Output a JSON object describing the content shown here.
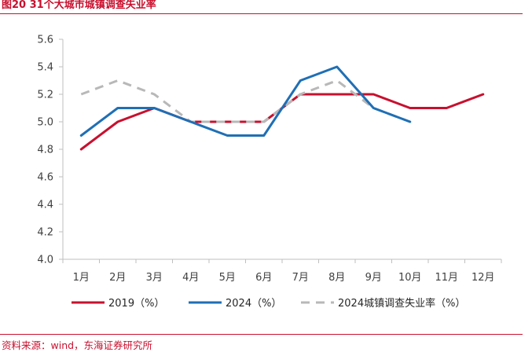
{
  "title": "图20  31个大城市城镇调查失业率",
  "source": "资料来源：wind，东海证券研究所",
  "colors": {
    "accent": "#c8102e",
    "s2019": "#c8102e",
    "s2024": "#1f6fb5",
    "survey": "#b8b8b8"
  },
  "chart_data": {
    "type": "line",
    "categories": [
      "1月",
      "2月",
      "3月",
      "4月",
      "5月",
      "6月",
      "7月",
      "8月",
      "9月",
      "10月",
      "11月",
      "12月"
    ],
    "ylim": [
      4.0,
      5.6
    ],
    "yticks": [
      "4.0",
      "4.2",
      "4.4",
      "4.6",
      "4.8",
      "5.0",
      "5.2",
      "5.4",
      "5.6"
    ],
    "grid": false,
    "legend_position": "bottom",
    "series": [
      {
        "name": "2019（%）",
        "color": "#c8102e",
        "style": "solid",
        "values": [
          4.8,
          5.0,
          5.1,
          5.0,
          5.0,
          5.0,
          5.2,
          5.2,
          5.2,
          5.1,
          5.1,
          5.2
        ]
      },
      {
        "name": "2024（%）",
        "color": "#1f6fb5",
        "style": "solid",
        "values": [
          4.9,
          5.1,
          5.1,
          5.0,
          4.9,
          4.9,
          5.3,
          5.4,
          5.1,
          5.0,
          null,
          null
        ]
      },
      {
        "name": "2024城镇调查失业率（%）",
        "color": "#b8b8b8",
        "style": "dashed",
        "values": [
          5.2,
          5.3,
          5.2,
          5.0,
          5.0,
          5.0,
          5.2,
          5.3,
          5.1,
          5.0,
          null,
          null
        ]
      }
    ]
  }
}
